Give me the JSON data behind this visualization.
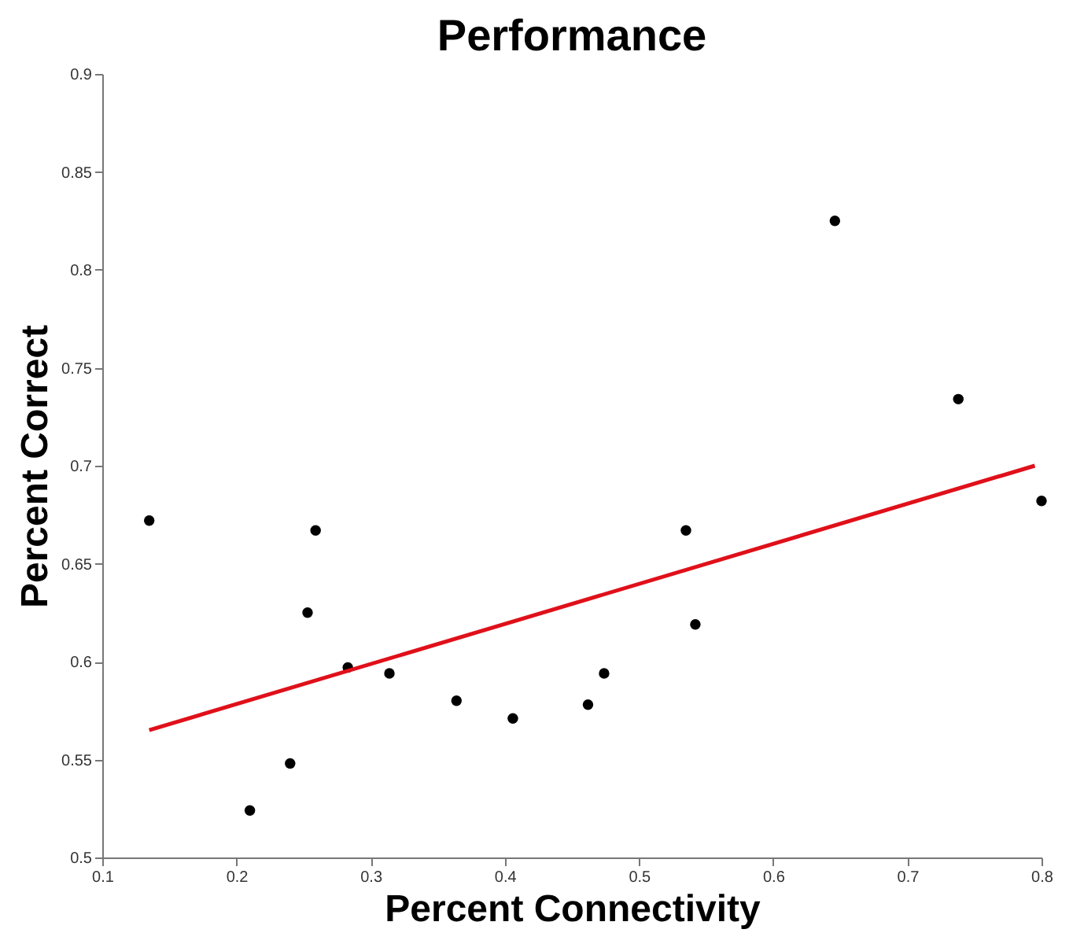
{
  "chart_data": {
    "type": "scatter",
    "title": "Performance",
    "xlabel": "Percent Connectivity",
    "ylabel": "Percent Correct",
    "xlim": [
      0.1,
      0.8
    ],
    "xticks": [
      0.1,
      0.2,
      0.3,
      0.4,
      0.5,
      0.6,
      0.7,
      0.8
    ],
    "ylim": [
      0.5,
      0.9
    ],
    "yticks": [
      0.5,
      0.55,
      0.6,
      0.65,
      0.7,
      0.75,
      0.8,
      0.85,
      0.9
    ],
    "grid": false,
    "marker": "circle",
    "series": [
      {
        "color": "#000000",
        "x": [
          0.135,
          0.21,
          0.24,
          0.253,
          0.259,
          0.283,
          0.314,
          0.364,
          0.406,
          0.462,
          0.474,
          0.535,
          0.542,
          0.646,
          0.738,
          0.8
        ],
        "values": [
          0.672,
          0.524,
          0.548,
          0.625,
          0.667,
          0.597,
          0.594,
          0.58,
          0.571,
          0.578,
          0.594,
          0.667,
          0.619,
          0.825,
          0.734,
          0.682
        ]
      },
      {
        "type": "line",
        "marker": "none",
        "color": "#e0101a",
        "line_style": "solid",
        "x": [
          0.135,
          0.795
        ],
        "values": [
          0.565,
          0.7
        ]
      }
    ]
  }
}
